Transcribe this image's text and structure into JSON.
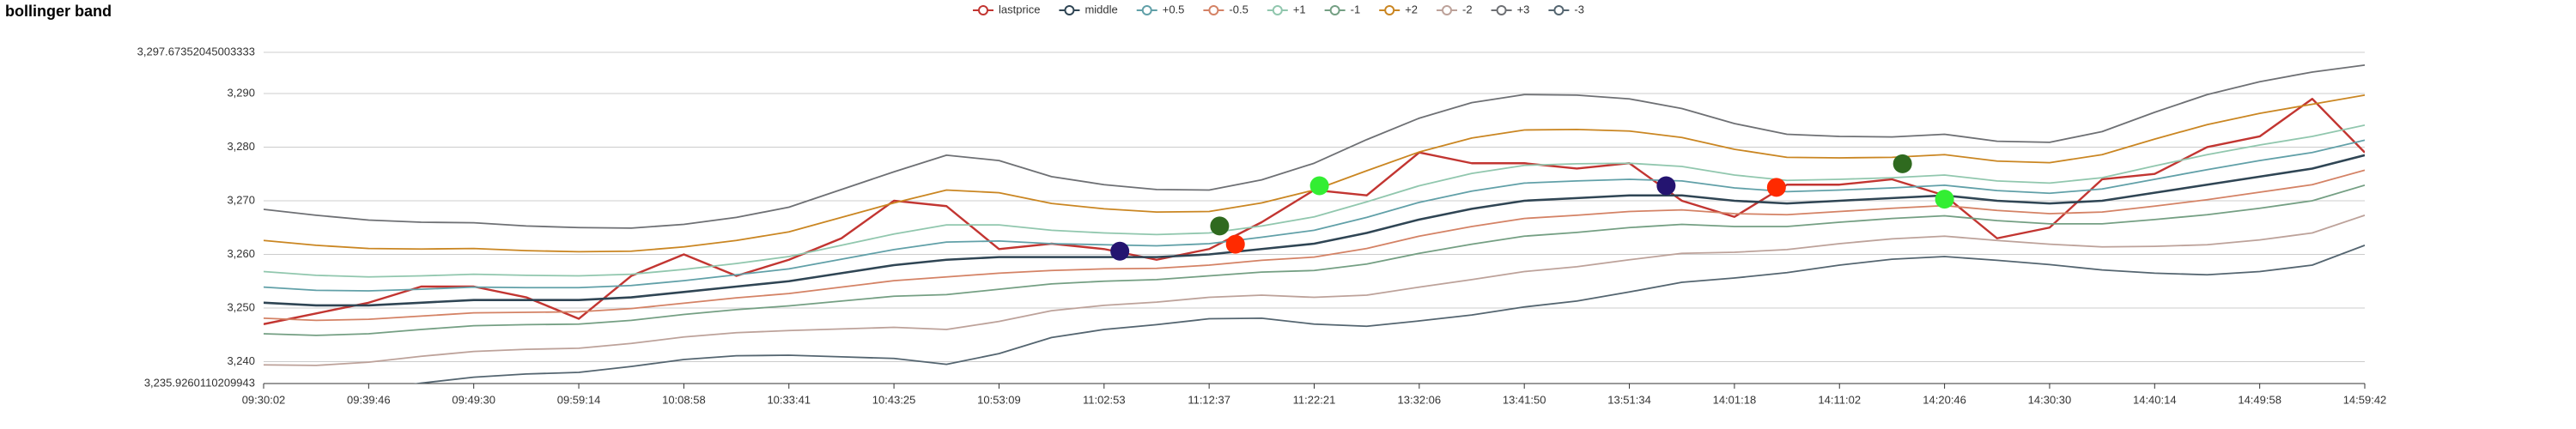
{
  "chart_data": {
    "type": "line",
    "title": "bollinger band",
    "categories": [
      "09:30:02",
      null,
      "09:39:46",
      null,
      "09:49:30",
      null,
      "09:59:14",
      null,
      "10:08:58",
      null,
      "10:33:41",
      null,
      "10:43:25",
      null,
      "10:53:09",
      null,
      "11:02:53",
      null,
      "11:12:37",
      null,
      "11:22:21",
      null,
      "13:32:06",
      null,
      "13:41:50",
      null,
      "13:51:34",
      null,
      "14:01:18",
      null,
      "14:11:02",
      null,
      "14:20:46",
      null,
      "14:30:30",
      null,
      "14:40:14",
      null,
      "14:49:58",
      null,
      "14:59:42"
    ],
    "ylim": [
      3235.9260110209943,
      3297.6735204500333
    ],
    "yticks": [
      {
        "value": 3235.9260110209943,
        "label": "3,235.9260110209943"
      },
      {
        "value": 3240,
        "label": "3,240"
      },
      {
        "value": 3250,
        "label": "3,250"
      },
      {
        "value": 3260,
        "label": "3,260"
      },
      {
        "value": 3270,
        "label": "3,270"
      },
      {
        "value": 3280,
        "label": "3,280"
      },
      {
        "value": 3290,
        "label": "3,290"
      },
      {
        "value": 3297.6735204500333,
        "label": "3,297.67352045003333"
      }
    ],
    "grid": true,
    "series": [
      {
        "name": "lastprice",
        "color": "#c23531",
        "values": [
          3247,
          3249,
          3251,
          3254,
          3254,
          3252,
          3248,
          3256,
          3260,
          3256,
          3259,
          3263,
          3270,
          3269,
          3261,
          3262,
          3261,
          3259,
          3261,
          3266,
          3272,
          3271,
          3279,
          3277,
          3277,
          3276,
          3277,
          3270,
          3267,
          3273,
          3273,
          3274,
          3271,
          3263,
          3265,
          3274,
          3275,
          3280,
          3282,
          3289,
          3279
        ]
      },
      {
        "name": "middle",
        "color": "#2f4554",
        "values": [
          3251,
          3250.5,
          3250.5,
          3251,
          3251.5,
          3251.5,
          3251.5,
          3252,
          3253,
          3254,
          3255,
          3256.5,
          3258,
          3259,
          3259.5,
          3259.5,
          3259.5,
          3259.5,
          3260,
          3261,
          3262,
          3264,
          3266.5,
          3268.5,
          3270,
          3270.5,
          3271,
          3271,
          3270,
          3269.5,
          3270,
          3270.5,
          3271,
          3270,
          3269.5,
          3270,
          3271.5,
          3273,
          3274.5,
          3276,
          3278.5
        ]
      },
      {
        "name": "+0.5",
        "color": "#61a0a8",
        "values": [
          3253.9,
          3253.3,
          3253.2,
          3253.5,
          3253.9,
          3253.8,
          3253.8,
          3254.2,
          3255.1,
          3256.2,
          3257.3,
          3259.1,
          3260.9,
          3262.3,
          3262.5,
          3262,
          3261.8,
          3261.6,
          3262,
          3263.2,
          3264.5,
          3266.9,
          3269.7,
          3271.8,
          3273.3,
          3273.7,
          3274,
          3273.7,
          3272.4,
          3271.7,
          3272,
          3272.4,
          3272.9,
          3271.9,
          3271.4,
          3272.2,
          3274,
          3275.8,
          3277.5,
          3279,
          3281.3
        ]
      },
      {
        "name": "-0.5",
        "color": "#d48265",
        "values": [
          3248.1,
          3247.7,
          3247.9,
          3248.5,
          3249.1,
          3249.2,
          3249.3,
          3249.9,
          3250.9,
          3251.9,
          3252.7,
          3253.9,
          3255.1,
          3255.8,
          3256.5,
          3257,
          3257.3,
          3257.4,
          3258,
          3258.9,
          3259.5,
          3261.1,
          3263.4,
          3265.2,
          3266.7,
          3267.3,
          3268,
          3268.3,
          3267.6,
          3267.4,
          3268,
          3268.6,
          3269.1,
          3268.2,
          3267.6,
          3267.9,
          3269,
          3270.2,
          3271.6,
          3273,
          3275.7
        ]
      },
      {
        "name": "+1",
        "color": "#91c7ae",
        "values": [
          3256.8,
          3256.1,
          3255.8,
          3256,
          3256.3,
          3256.1,
          3256,
          3256.3,
          3257.2,
          3258.3,
          3259.6,
          3261.7,
          3263.8,
          3265.5,
          3265.5,
          3264.5,
          3264,
          3263.7,
          3264,
          3265.3,
          3267,
          3269.8,
          3272.8,
          3275.1,
          3276.6,
          3276.9,
          3277,
          3276.4,
          3274.8,
          3273.8,
          3274,
          3274.3,
          3274.8,
          3273.7,
          3273.3,
          3274.3,
          3276.5,
          3278.6,
          3280.4,
          3282,
          3284.1
        ]
      },
      {
        "name": "-1",
        "color": "#749f83",
        "values": [
          3245.2,
          3244.9,
          3245.2,
          3246,
          3246.7,
          3246.9,
          3247,
          3247.7,
          3248.8,
          3249.7,
          3250.4,
          3251.3,
          3252.2,
          3252.5,
          3253.5,
          3254.5,
          3255,
          3255.3,
          3256,
          3256.7,
          3257,
          3258.2,
          3260.2,
          3261.9,
          3263.4,
          3264.1,
          3265,
          3265.6,
          3265.2,
          3265.2,
          3266,
          3266.7,
          3267.2,
          3266.3,
          3265.7,
          3265.7,
          3266.5,
          3267.4,
          3268.6,
          3270,
          3272.9
        ]
      },
      {
        "name": "+2",
        "color": "#ca8622",
        "values": [
          3262.6,
          3261.7,
          3261.1,
          3261,
          3261.1,
          3260.7,
          3260.5,
          3260.6,
          3261.4,
          3262.6,
          3264.2,
          3266.9,
          3269.6,
          3272,
          3271.5,
          3269.5,
          3268.5,
          3267.9,
          3268,
          3269.6,
          3272,
          3275.6,
          3279.1,
          3281.7,
          3283.2,
          3283.3,
          3283,
          3281.8,
          3279.6,
          3278.1,
          3278,
          3278.1,
          3278.6,
          3277.4,
          3277.1,
          3278.6,
          3281.5,
          3284.2,
          3286.3,
          3288,
          3289.7
        ]
      },
      {
        "name": "-2",
        "color": "#bda29a",
        "values": [
          3239.4,
          3239.3,
          3239.9,
          3241,
          3241.9,
          3242.3,
          3242.5,
          3243.4,
          3244.6,
          3245.4,
          3245.8,
          3246.1,
          3246.4,
          3246,
          3247.5,
          3249.5,
          3250.5,
          3251.1,
          3252,
          3252.4,
          3252,
          3252.4,
          3253.9,
          3255.3,
          3256.8,
          3257.7,
          3259,
          3260.2,
          3260.4,
          3260.9,
          3262,
          3262.9,
          3263.4,
          3262.6,
          3261.9,
          3261.4,
          3261.5,
          3261.8,
          3262.7,
          3264,
          3267.3
        ]
      },
      {
        "name": "+3",
        "color": "#6e7074",
        "values": [
          3268.4,
          3267.3,
          3266.4,
          3266,
          3265.9,
          3265.3,
          3265,
          3264.9,
          3265.6,
          3266.9,
          3268.8,
          3272.1,
          3275.4,
          3278.5,
          3277.5,
          3274.5,
          3273,
          3272.1,
          3272,
          3273.9,
          3277,
          3281.4,
          3285.4,
          3288.3,
          3289.8,
          3289.7,
          3289,
          3287.2,
          3284.4,
          3282.4,
          3282,
          3281.9,
          3282.4,
          3281.1,
          3280.9,
          3282.9,
          3286.5,
          3289.8,
          3292.2,
          3294,
          3295.3
        ]
      },
      {
        "name": "-3",
        "color": "#546570",
        "values": [
          3233.6,
          3233.7,
          3234.6,
          3236,
          3237.1,
          3237.7,
          3238,
          3239.1,
          3240.4,
          3241.1,
          3241.2,
          3240.9,
          3240.6,
          3239.5,
          3241.5,
          3244.5,
          3246,
          3246.9,
          3248,
          3248.1,
          3247,
          3246.6,
          3247.6,
          3248.7,
          3250.2,
          3251.3,
          3253,
          3254.8,
          3255.6,
          3256.6,
          3258,
          3259.1,
          3259.6,
          3258.9,
          3258.1,
          3257.1,
          3256.5,
          3256.2,
          3256.8,
          3258,
          3261.7
        ]
      }
    ],
    "signals": [
      {
        "x": 16.3,
        "y": 3260.6,
        "color": "#241470"
      },
      {
        "x": 18.2,
        "y": 3265.3,
        "color": "#2f6a1f"
      },
      {
        "x": 18.5,
        "y": 3261.9,
        "color": "#ff2a00"
      },
      {
        "x": 20.1,
        "y": 3272.8,
        "color": "#33ee33"
      },
      {
        "x": 26.7,
        "y": 3272.8,
        "color": "#241470"
      },
      {
        "x": 28.8,
        "y": 3272.5,
        "color": "#ff2a00"
      },
      {
        "x": 31.2,
        "y": 3276.9,
        "color": "#2f6a1f"
      },
      {
        "x": 32.0,
        "y": 3270.3,
        "color": "#33ee33"
      }
    ]
  }
}
